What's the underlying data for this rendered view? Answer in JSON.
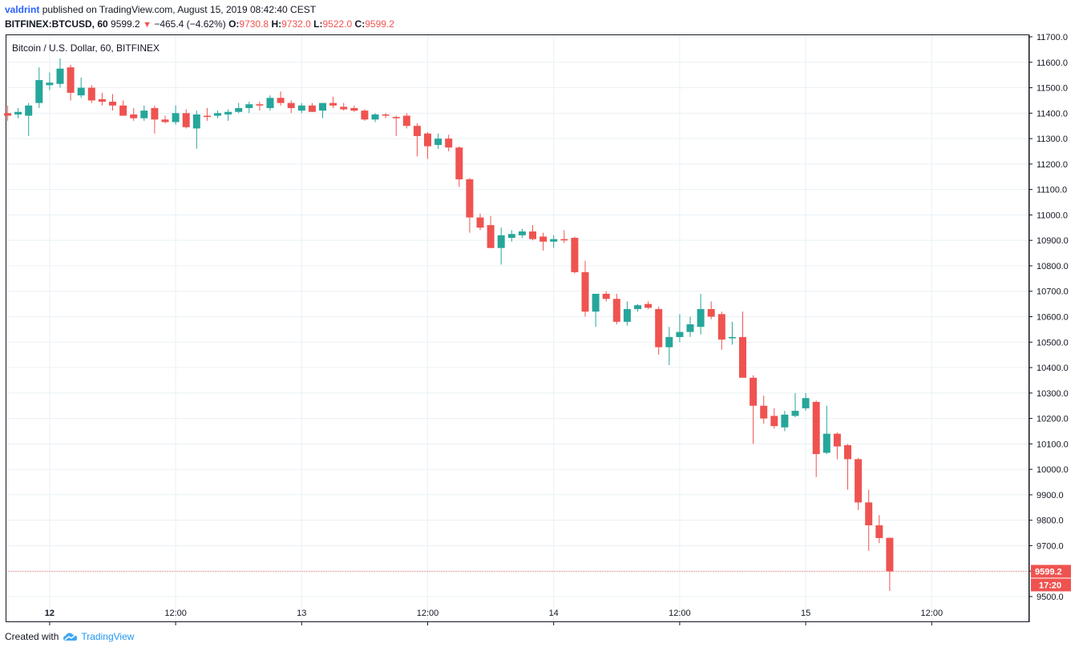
{
  "header": {
    "user": "valdrint",
    "published": "published on TradingView.com, August 15, 2019 08:42:40 CEST",
    "symbol": "BITFINEX:BTCUSD, 60",
    "last": "9599.2",
    "change": "−465.4 (−4.62%)",
    "o_label": "O:",
    "o": "9730.8",
    "h_label": "H:",
    "h": "9732.0",
    "l_label": "L:",
    "l": "9522.0",
    "c_label": "C:",
    "c": "9599.2"
  },
  "footer": {
    "created": "Created with",
    "brand": "TradingView"
  },
  "colors": {
    "up": "#26a69a",
    "down": "#ef5350",
    "grid": "#e9f0f5",
    "axis": "#131722"
  },
  "chart_data": {
    "type": "candlestick",
    "title": "Bitcoin / U.S. Dollar, 60, BITFINEX",
    "ylim": [
      9500,
      11700
    ],
    "y_ticks": [
      "11700.0",
      "11600.0",
      "11500.0",
      "11400.0",
      "11300.0",
      "11200.0",
      "11100.0",
      "11000.0",
      "10900.0",
      "10800.0",
      "10700.0",
      "10600.0",
      "10500.0",
      "10400.0",
      "10300.0",
      "10200.0",
      "10100.0",
      "10000.0",
      "9900.0",
      "9800.0",
      "9700.0",
      "9600.0",
      "9500.0"
    ],
    "x_ticks": [
      {
        "label": "12",
        "bar": 4,
        "bold": true
      },
      {
        "label": "12:00",
        "bar": 16
      },
      {
        "label": "13",
        "bar": 28
      },
      {
        "label": "12:00",
        "bar": 40
      },
      {
        "label": "14",
        "bar": 52
      },
      {
        "label": "12:00",
        "bar": 64
      },
      {
        "label": "15",
        "bar": 76
      },
      {
        "label": "12:00",
        "bar": 88
      }
    ],
    "last_price": 9599.2,
    "last_price_label": "9599.2",
    "countdown": "17:20",
    "candles": [
      {
        "o": 11400,
        "h": 11430,
        "l": 11370,
        "c": 11390
      },
      {
        "o": 11395,
        "h": 11420,
        "l": 11380,
        "c": 11405
      },
      {
        "o": 11390,
        "h": 11440,
        "l": 11310,
        "c": 11430
      },
      {
        "o": 11440,
        "h": 11580,
        "l": 11420,
        "c": 11530
      },
      {
        "o": 11510,
        "h": 11560,
        "l": 11490,
        "c": 11520
      },
      {
        "o": 11515,
        "h": 11615,
        "l": 11500,
        "c": 11575
      },
      {
        "o": 11580,
        "h": 11590,
        "l": 11450,
        "c": 11480
      },
      {
        "o": 11470,
        "h": 11540,
        "l": 11460,
        "c": 11500
      },
      {
        "o": 11500,
        "h": 11510,
        "l": 11440,
        "c": 11450
      },
      {
        "o": 11455,
        "h": 11480,
        "l": 11430,
        "c": 11445
      },
      {
        "o": 11445,
        "h": 11475,
        "l": 11410,
        "c": 11430
      },
      {
        "o": 11430,
        "h": 11450,
        "l": 11390,
        "c": 11390
      },
      {
        "o": 11395,
        "h": 11420,
        "l": 11370,
        "c": 11380
      },
      {
        "o": 11380,
        "h": 11430,
        "l": 11370,
        "c": 11410
      },
      {
        "o": 11420,
        "h": 11430,
        "l": 11320,
        "c": 11375
      },
      {
        "o": 11375,
        "h": 11390,
        "l": 11360,
        "c": 11365
      },
      {
        "o": 11365,
        "h": 11430,
        "l": 11355,
        "c": 11400
      },
      {
        "o": 11400,
        "h": 11415,
        "l": 11340,
        "c": 11345
      },
      {
        "o": 11340,
        "h": 11410,
        "l": 11260,
        "c": 11395
      },
      {
        "o": 11390,
        "h": 11420,
        "l": 11370,
        "c": 11385
      },
      {
        "o": 11390,
        "h": 11410,
        "l": 11380,
        "c": 11400
      },
      {
        "o": 11395,
        "h": 11415,
        "l": 11370,
        "c": 11405
      },
      {
        "o": 11405,
        "h": 11440,
        "l": 11400,
        "c": 11420
      },
      {
        "o": 11420,
        "h": 11445,
        "l": 11400,
        "c": 11435
      },
      {
        "o": 11435,
        "h": 11445,
        "l": 11410,
        "c": 11430
      },
      {
        "o": 11420,
        "h": 11470,
        "l": 11410,
        "c": 11460
      },
      {
        "o": 11460,
        "h": 11485,
        "l": 11430,
        "c": 11440
      },
      {
        "o": 11440,
        "h": 11450,
        "l": 11400,
        "c": 11420
      },
      {
        "o": 11410,
        "h": 11440,
        "l": 11400,
        "c": 11430
      },
      {
        "o": 11430,
        "h": 11440,
        "l": 11405,
        "c": 11405
      },
      {
        "o": 11410,
        "h": 11440,
        "l": 11380,
        "c": 11440
      },
      {
        "o": 11440,
        "h": 11465,
        "l": 11420,
        "c": 11430
      },
      {
        "o": 11425,
        "h": 11440,
        "l": 11410,
        "c": 11415
      },
      {
        "o": 11420,
        "h": 11430,
        "l": 11405,
        "c": 11410
      },
      {
        "o": 11410,
        "h": 11415,
        "l": 11370,
        "c": 11375
      },
      {
        "o": 11375,
        "h": 11400,
        "l": 11365,
        "c": 11395
      },
      {
        "o": 11395,
        "h": 11400,
        "l": 11380,
        "c": 11390
      },
      {
        "o": 11385,
        "h": 11390,
        "l": 11310,
        "c": 11380
      },
      {
        "o": 11390,
        "h": 11400,
        "l": 11340,
        "c": 11350
      },
      {
        "o": 11350,
        "h": 11360,
        "l": 11230,
        "c": 11310
      },
      {
        "o": 11320,
        "h": 11325,
        "l": 11220,
        "c": 11270
      },
      {
        "o": 11275,
        "h": 11320,
        "l": 11260,
        "c": 11300
      },
      {
        "o": 11300,
        "h": 11315,
        "l": 11250,
        "c": 11265
      },
      {
        "o": 11265,
        "h": 11270,
        "l": 11110,
        "c": 11140
      },
      {
        "o": 11140,
        "h": 11145,
        "l": 10930,
        "c": 10990
      },
      {
        "o": 10990,
        "h": 11005,
        "l": 10940,
        "c": 10950
      },
      {
        "o": 10960,
        "h": 10995,
        "l": 10870,
        "c": 10870
      },
      {
        "o": 10870,
        "h": 10950,
        "l": 10805,
        "c": 10920
      },
      {
        "o": 10910,
        "h": 10940,
        "l": 10895,
        "c": 10925
      },
      {
        "o": 10920,
        "h": 10945,
        "l": 10910,
        "c": 10935
      },
      {
        "o": 10935,
        "h": 10960,
        "l": 10900,
        "c": 10905
      },
      {
        "o": 10915,
        "h": 10930,
        "l": 10860,
        "c": 10895
      },
      {
        "o": 10895,
        "h": 10920,
        "l": 10870,
        "c": 10905
      },
      {
        "o": 10905,
        "h": 10940,
        "l": 10890,
        "c": 10900
      },
      {
        "o": 10910,
        "h": 10915,
        "l": 10770,
        "c": 10775
      },
      {
        "o": 10775,
        "h": 10820,
        "l": 10600,
        "c": 10620
      },
      {
        "o": 10620,
        "h": 10690,
        "l": 10560,
        "c": 10690
      },
      {
        "o": 10690,
        "h": 10700,
        "l": 10660,
        "c": 10670
      },
      {
        "o": 10670,
        "h": 10690,
        "l": 10570,
        "c": 10580
      },
      {
        "o": 10580,
        "h": 10660,
        "l": 10565,
        "c": 10630
      },
      {
        "o": 10630,
        "h": 10650,
        "l": 10620,
        "c": 10645
      },
      {
        "o": 10650,
        "h": 10660,
        "l": 10630,
        "c": 10635
      },
      {
        "o": 10630,
        "h": 10640,
        "l": 10450,
        "c": 10480
      },
      {
        "o": 10480,
        "h": 10560,
        "l": 10410,
        "c": 10520
      },
      {
        "o": 10520,
        "h": 10610,
        "l": 10500,
        "c": 10540
      },
      {
        "o": 10540,
        "h": 10600,
        "l": 10520,
        "c": 10570
      },
      {
        "o": 10560,
        "h": 10690,
        "l": 10530,
        "c": 10630
      },
      {
        "o": 10630,
        "h": 10660,
        "l": 10590,
        "c": 10600
      },
      {
        "o": 10610,
        "h": 10620,
        "l": 10470,
        "c": 10510
      },
      {
        "o": 10515,
        "h": 10580,
        "l": 10490,
        "c": 10520
      },
      {
        "o": 10520,
        "h": 10620,
        "l": 10370,
        "c": 10360
      },
      {
        "o": 10360,
        "h": 10370,
        "l": 10100,
        "c": 10250
      },
      {
        "o": 10250,
        "h": 10290,
        "l": 10180,
        "c": 10200
      },
      {
        "o": 10210,
        "h": 10240,
        "l": 10160,
        "c": 10170
      },
      {
        "o": 10165,
        "h": 10230,
        "l": 10150,
        "c": 10215
      },
      {
        "o": 10210,
        "h": 10300,
        "l": 10205,
        "c": 10230
      },
      {
        "o": 10240,
        "h": 10300,
        "l": 10230,
        "c": 10280
      },
      {
        "o": 10265,
        "h": 10270,
        "l": 9970,
        "c": 10060
      },
      {
        "o": 10065,
        "h": 10250,
        "l": 10060,
        "c": 10140
      },
      {
        "o": 10140,
        "h": 10145,
        "l": 10040,
        "c": 10090
      },
      {
        "o": 10095,
        "h": 10100,
        "l": 9920,
        "c": 10040
      },
      {
        "o": 10040,
        "h": 10045,
        "l": 9840,
        "c": 9870
      },
      {
        "o": 9870,
        "h": 9920,
        "l": 9680,
        "c": 9780
      },
      {
        "o": 9780,
        "h": 9820,
        "l": 9710,
        "c": 9730
      },
      {
        "o": 9730.8,
        "h": 9732,
        "l": 9522,
        "c": 9599.2
      }
    ]
  }
}
